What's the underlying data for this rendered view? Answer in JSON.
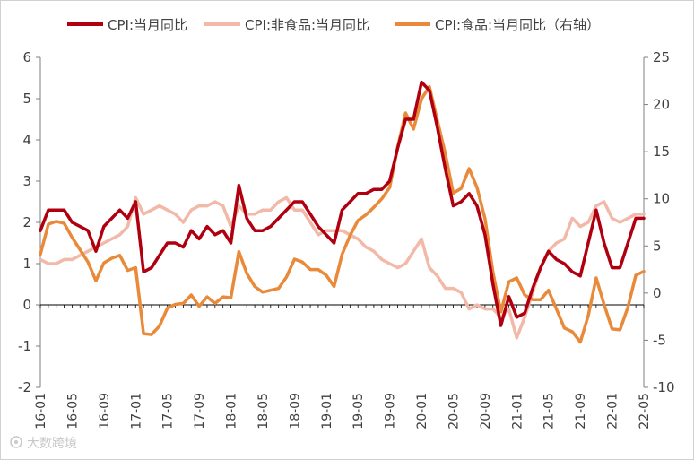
{
  "chart_data": {
    "type": "line",
    "title": "",
    "xlabel": "",
    "ylabel": "",
    "ylim": [
      -2,
      6
    ],
    "y2lim": [
      -10,
      25
    ],
    "yticks": [
      -2,
      -1,
      0,
      1,
      2,
      3,
      4,
      5,
      6
    ],
    "y2ticks": [
      -10,
      -5,
      0,
      5,
      10,
      15,
      20,
      25
    ],
    "x": [
      "16-01",
      "16-02",
      "16-03",
      "16-04",
      "16-05",
      "16-06",
      "16-07",
      "16-08",
      "16-09",
      "16-10",
      "16-11",
      "16-12",
      "17-01",
      "17-02",
      "17-03",
      "17-04",
      "17-05",
      "17-06",
      "17-07",
      "17-08",
      "17-09",
      "17-10",
      "17-11",
      "17-12",
      "18-01",
      "18-02",
      "18-03",
      "18-04",
      "18-05",
      "18-06",
      "18-07",
      "18-08",
      "18-09",
      "18-10",
      "18-11",
      "18-12",
      "19-01",
      "19-02",
      "19-03",
      "19-04",
      "19-05",
      "19-06",
      "19-07",
      "19-08",
      "19-09",
      "19-10",
      "19-11",
      "19-12",
      "20-01",
      "20-02",
      "20-03",
      "20-04",
      "20-05",
      "20-06",
      "20-07",
      "20-08",
      "20-09",
      "20-10",
      "20-11",
      "20-12",
      "21-01",
      "21-02",
      "21-03",
      "21-04",
      "21-05",
      "21-06",
      "21-07",
      "21-08",
      "21-09",
      "21-10",
      "21-11",
      "21-12",
      "22-01",
      "22-02",
      "22-03",
      "22-04",
      "22-05"
    ],
    "xtick_labels": [
      "16-01",
      "16-05",
      "16-09",
      "17-01",
      "17-05",
      "17-09",
      "18-01",
      "18-05",
      "18-09",
      "19-01",
      "19-05",
      "19-09",
      "20-01",
      "20-05",
      "20-09",
      "21-01",
      "21-05",
      "21-09",
      "22-01",
      "22-05"
    ],
    "legend_position": "top",
    "series": [
      {
        "name": "CPI:当月同比",
        "axis": "left",
        "color": "#b0000f",
        "values": [
          1.8,
          2.3,
          2.3,
          2.3,
          2.0,
          1.9,
          1.8,
          1.3,
          1.9,
          2.1,
          2.3,
          2.1,
          2.5,
          0.8,
          0.9,
          1.2,
          1.5,
          1.5,
          1.4,
          1.8,
          1.6,
          1.9,
          1.7,
          1.8,
          1.5,
          2.9,
          2.1,
          1.8,
          1.8,
          1.9,
          2.1,
          2.3,
          2.5,
          2.5,
          2.2,
          1.9,
          1.7,
          1.5,
          2.3,
          2.5,
          2.7,
          2.7,
          2.8,
          2.8,
          3.0,
          3.8,
          4.5,
          4.5,
          5.4,
          5.2,
          4.3,
          3.3,
          2.4,
          2.5,
          2.7,
          2.4,
          1.7,
          0.5,
          -0.5,
          0.2,
          -0.3,
          -0.2,
          0.4,
          0.9,
          1.3,
          1.1,
          1.0,
          0.8,
          0.7,
          1.5,
          2.3,
          1.5,
          0.9,
          0.9,
          1.5,
          2.1,
          2.1
        ]
      },
      {
        "name": "CPI:非食品:当月同比",
        "axis": "left",
        "color": "#f2b8a8",
        "values": [
          1.1,
          1.0,
          1.0,
          1.1,
          1.1,
          1.2,
          1.3,
          1.4,
          1.5,
          1.6,
          1.7,
          1.9,
          2.6,
          2.2,
          2.3,
          2.4,
          2.3,
          2.2,
          2.0,
          2.3,
          2.4,
          2.4,
          2.5,
          2.4,
          1.9,
          2.4,
          2.2,
          2.2,
          2.3,
          2.3,
          2.5,
          2.6,
          2.3,
          2.3,
          2.0,
          1.7,
          1.8,
          1.8,
          1.8,
          1.7,
          1.6,
          1.4,
          1.3,
          1.1,
          1.0,
          0.9,
          1.0,
          1.3,
          1.6,
          0.9,
          0.7,
          0.4,
          0.4,
          0.3,
          -0.1,
          0.0,
          -0.1,
          -0.1,
          -0.3,
          -0.1,
          -0.8,
          -0.3,
          0.3,
          0.9,
          1.3,
          1.5,
          1.6,
          2.1,
          1.9,
          2.0,
          2.4,
          2.5,
          2.1,
          2.0,
          2.1,
          2.2,
          2.2
        ]
      },
      {
        "name": "CPI:食品:当月同比（右轴）",
        "axis": "right",
        "color": "#e98a3a",
        "values": [
          4.1,
          7.3,
          7.6,
          7.4,
          5.9,
          4.6,
          3.3,
          1.3,
          3.2,
          3.7,
          4.0,
          2.4,
          2.7,
          -4.3,
          -4.4,
          -3.5,
          -1.6,
          -1.2,
          -1.1,
          -0.2,
          -1.4,
          -0.4,
          -1.1,
          -0.4,
          -0.5,
          4.4,
          2.1,
          0.7,
          0.1,
          0.3,
          0.5,
          1.7,
          3.6,
          3.3,
          2.5,
          2.5,
          1.9,
          0.7,
          4.1,
          6.1,
          7.7,
          8.3,
          9.1,
          10.0,
          11.2,
          15.5,
          19.1,
          17.4,
          20.6,
          21.9,
          18.3,
          14.8,
          10.6,
          11.1,
          13.2,
          11.2,
          7.9,
          2.2,
          -2.0,
          1.2,
          1.6,
          -0.2,
          -0.7,
          -0.7,
          0.3,
          -1.7,
          -3.7,
          -4.1,
          -5.2,
          -2.4,
          1.6,
          -1.2,
          -3.8,
          -3.9,
          -1.5,
          1.9,
          2.3
        ]
      }
    ]
  },
  "watermark": "大数跨境"
}
